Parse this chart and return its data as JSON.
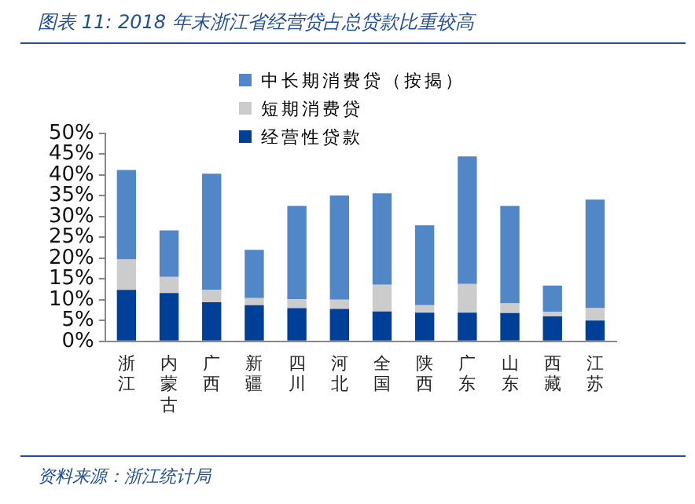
{
  "chart_data": {
    "type": "bar",
    "title": "图表 11: 2018 年末浙江省经营贷占总贷款比重较高",
    "categories": [
      "浙江",
      "内蒙古",
      "广西",
      "新疆",
      "四川",
      "河北",
      "全国",
      "陕西",
      "广东",
      "山东",
      "西藏",
      "江苏"
    ],
    "series": [
      {
        "name": "经营性贷款",
        "color": "#003f98",
        "values": [
          12.4,
          11.6,
          9.4,
          8.7,
          8.0,
          7.8,
          7.2,
          6.9,
          6.9,
          6.8,
          6.0,
          5.0
        ]
      },
      {
        "name": "短期消费贷",
        "color": "#cccccc",
        "values": [
          7.3,
          3.9,
          3.0,
          1.7,
          2.1,
          2.2,
          6.4,
          1.8,
          6.9,
          2.3,
          1.1,
          3.0
        ]
      },
      {
        "name": "中长期消费贷（按揭）",
        "color": "#5187c7",
        "values": [
          21.5,
          11.2,
          27.9,
          11.6,
          22.5,
          25.1,
          22.0,
          19.2,
          30.7,
          23.5,
          6.3,
          26.1
        ]
      }
    ],
    "stacked": true,
    "ylim": [
      0,
      50
    ],
    "yticks": [
      {
        "value": 0,
        "label": "0%"
      },
      {
        "value": 5,
        "label": "5%"
      },
      {
        "value": 10,
        "label": "10%"
      },
      {
        "value": 15,
        "label": "15%"
      },
      {
        "value": 20,
        "label": "20%"
      },
      {
        "value": 25,
        "label": "25%"
      },
      {
        "value": 30,
        "label": "30%"
      },
      {
        "value": 35,
        "label": "35%"
      },
      {
        "value": 40,
        "label": "40%"
      },
      {
        "value": 45,
        "label": "45%"
      },
      {
        "value": 50,
        "label": "50%"
      }
    ],
    "legend": "top",
    "annotations": [
      "资料来源：浙江统计局"
    ]
  }
}
